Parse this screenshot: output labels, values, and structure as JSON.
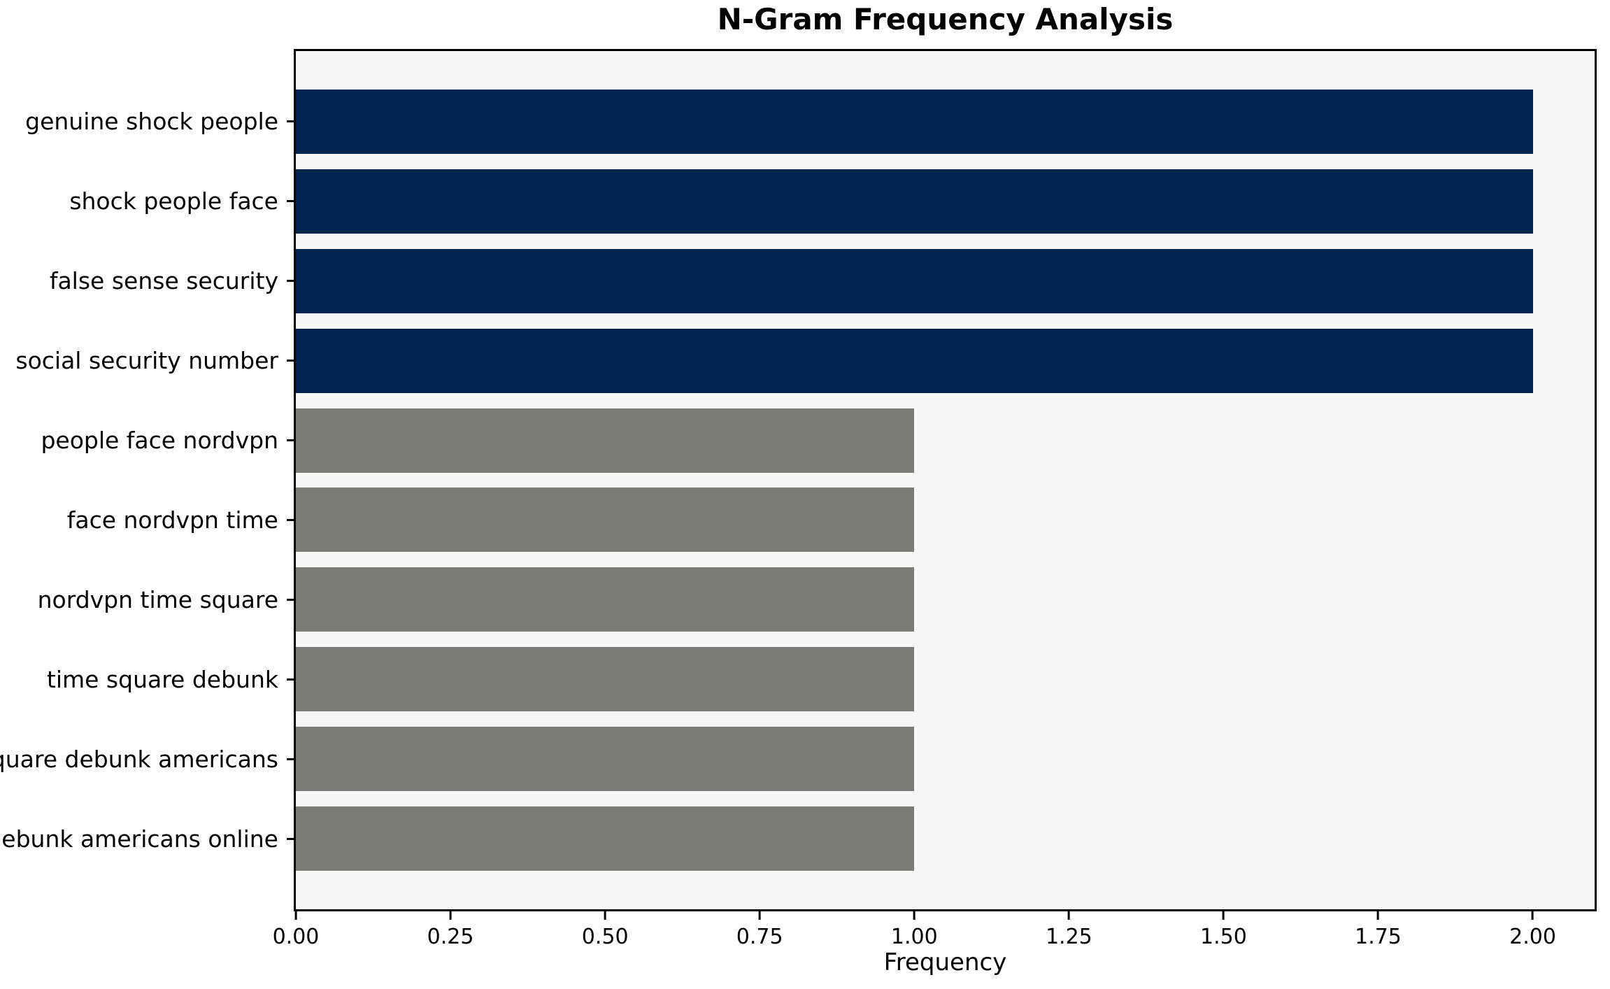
{
  "chart_data": {
    "type": "bar",
    "orientation": "horizontal",
    "title": "N-Gram Frequency Analysis",
    "xlabel": "Frequency",
    "ylabel": "",
    "categories": [
      "genuine shock people",
      "shock people face",
      "false sense security",
      "social security number",
      "people face nordvpn",
      "face nordvpn time",
      "nordvpn time square",
      "time square debunk",
      "square debunk americans",
      "debunk americans online"
    ],
    "values": [
      2,
      2,
      2,
      2,
      1,
      1,
      1,
      1,
      1,
      1
    ],
    "bar_colors": [
      "#02234d",
      "#02234d",
      "#02234d",
      "#02234d",
      "#7b7b78",
      "#7b7b78",
      "#7b7b78",
      "#7b7b78",
      "#7b7b78",
      "#7b7b78"
    ],
    "xlim": [
      0,
      2.1
    ],
    "xticks": [
      {
        "value": 0.0,
        "label": "0.00"
      },
      {
        "value": 0.25,
        "label": "0.25"
      },
      {
        "value": 0.5,
        "label": "0.50"
      },
      {
        "value": 0.75,
        "label": "0.75"
      },
      {
        "value": 1.0,
        "label": "1.00"
      },
      {
        "value": 1.25,
        "label": "1.25"
      },
      {
        "value": 1.5,
        "label": "1.50"
      },
      {
        "value": 1.75,
        "label": "1.75"
      },
      {
        "value": 2.0,
        "label": "2.00"
      }
    ],
    "grid": false,
    "legend": null,
    "colors": {
      "highlight_bar": "#02234d",
      "default_bar": "#7b7b78",
      "plot_background": "#f7f7f8",
      "figure_background": "#ffffff",
      "axis": "#000000",
      "text": "#000000"
    }
  }
}
